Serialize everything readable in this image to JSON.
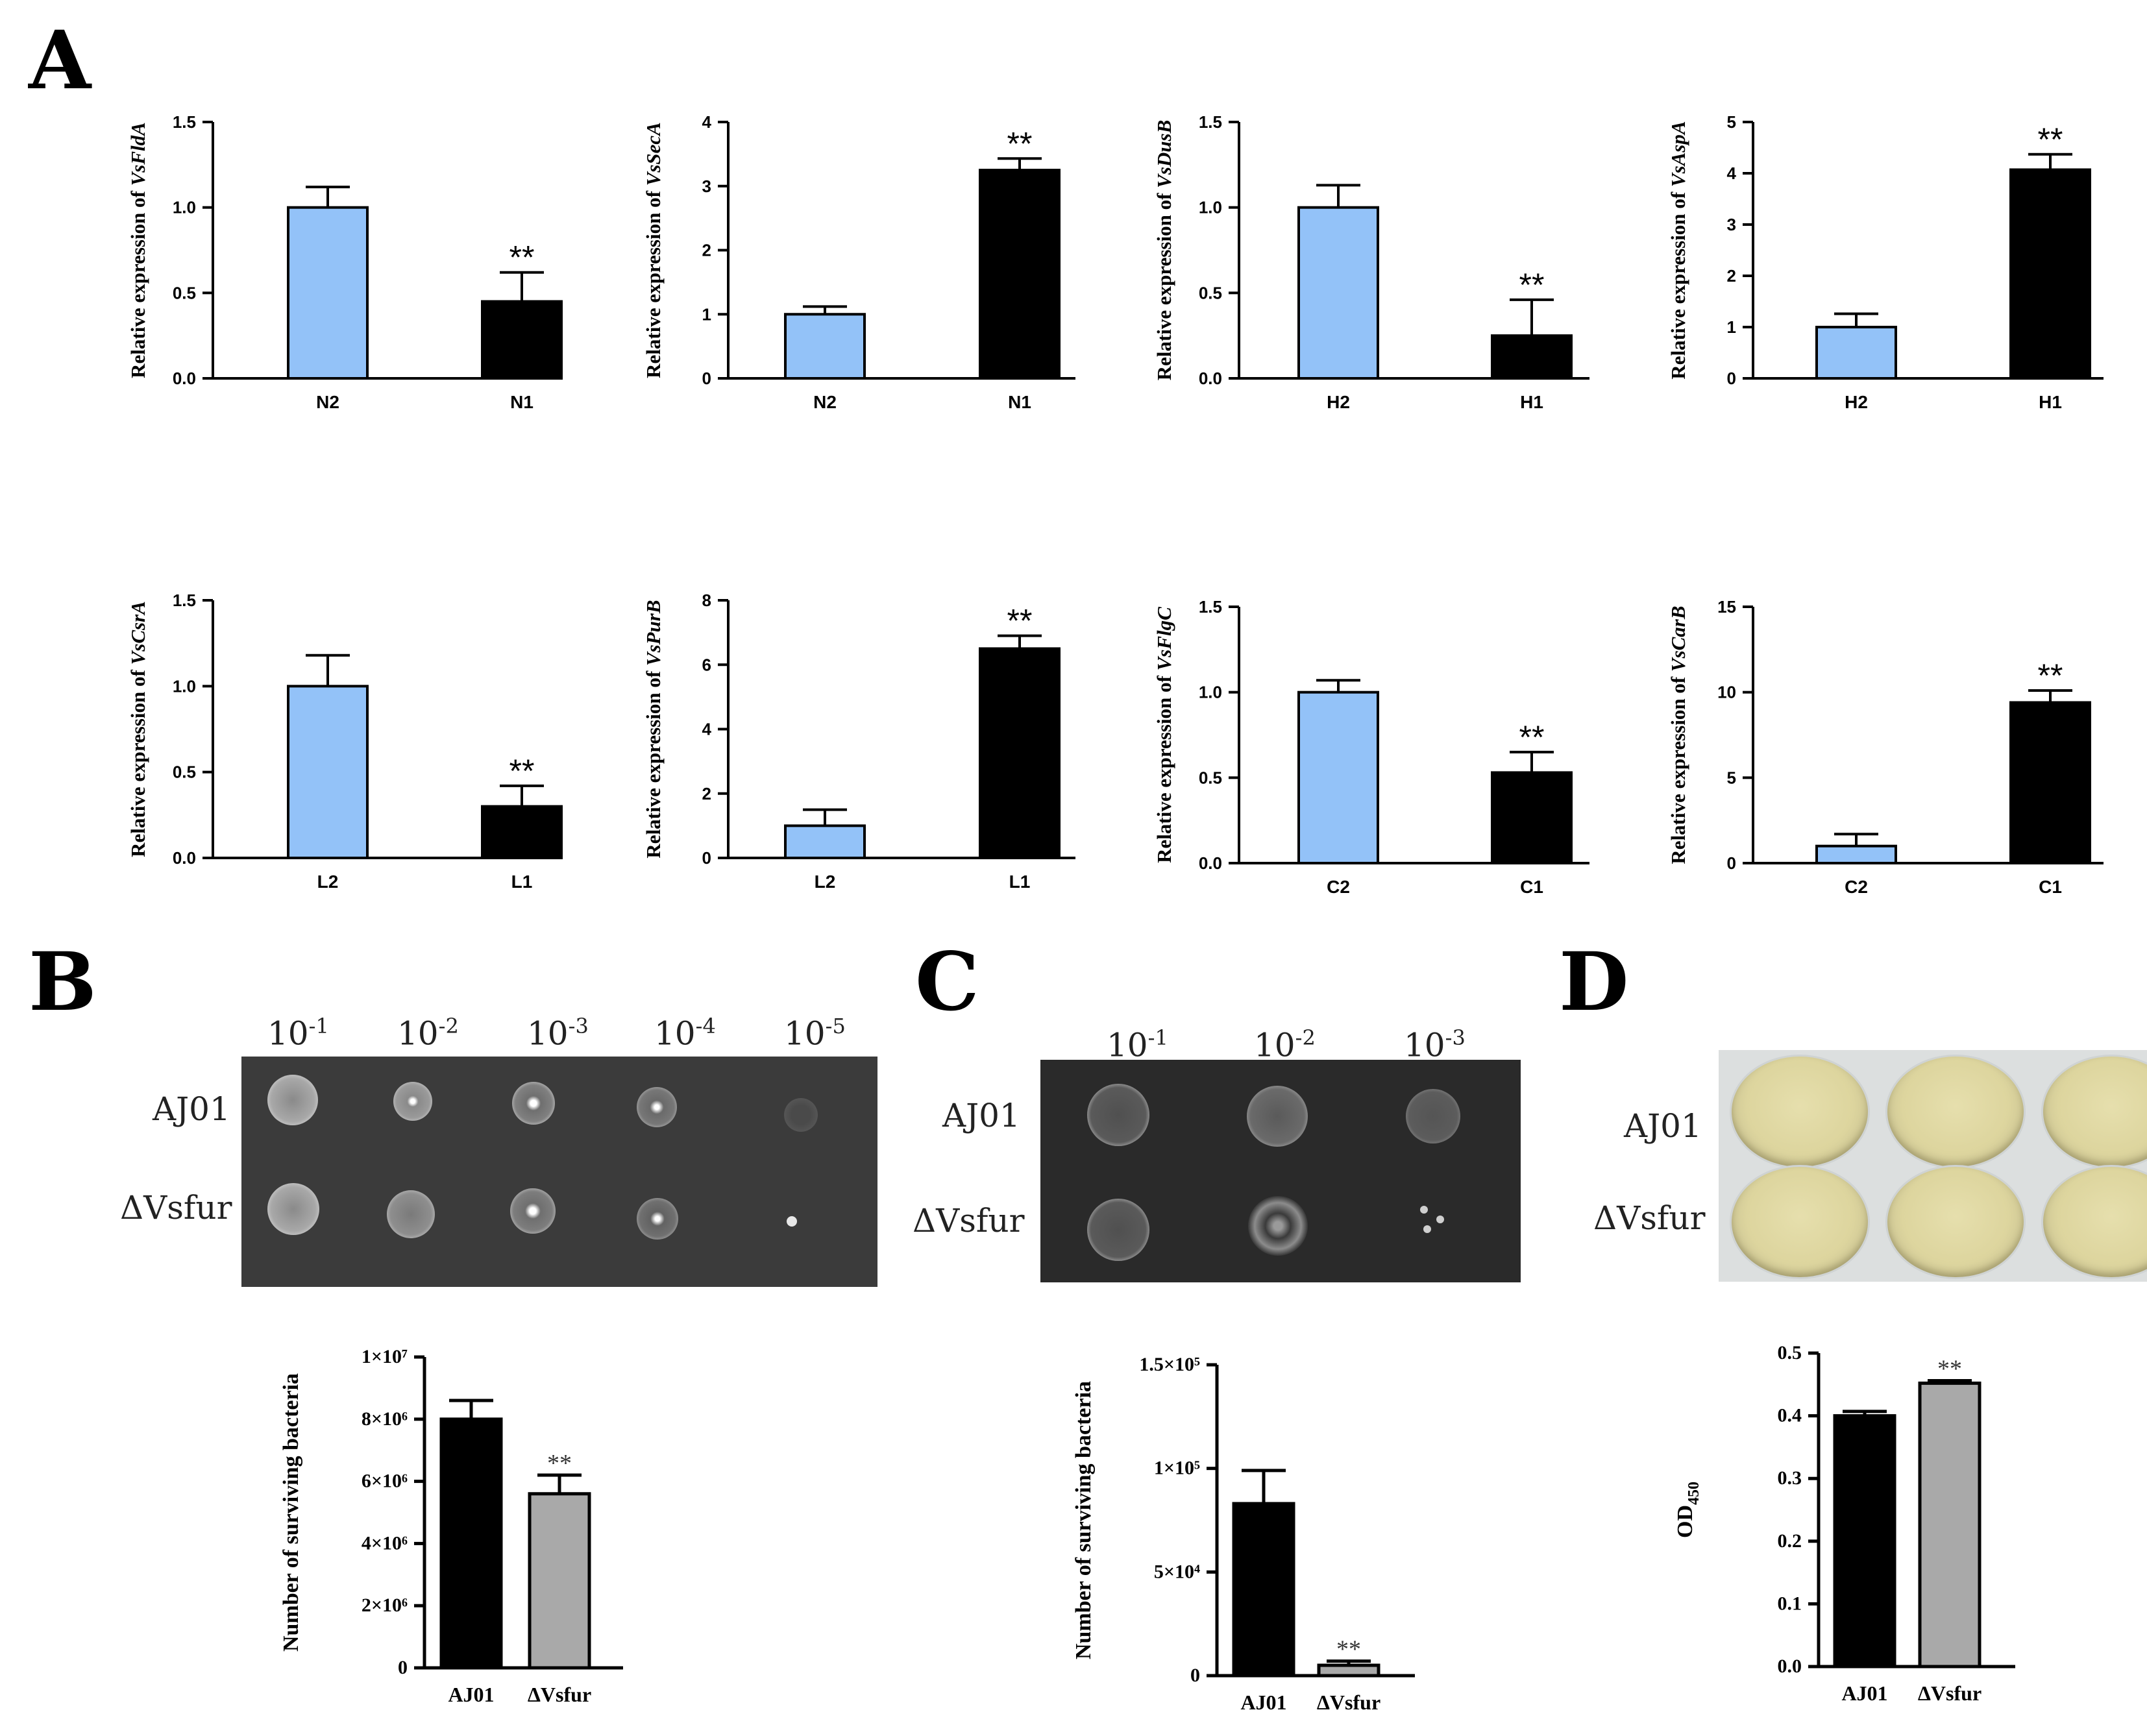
{
  "panels": {
    "a": "A",
    "b": "B",
    "c": "C",
    "d": "D"
  },
  "colors": {
    "control": "#93c2f8",
    "treated": "#000000",
    "gray": "#a9a9a9"
  },
  "chart_data": [
    {
      "id": "vsflda",
      "type": "bar",
      "ylabel_prefix": "Relative expression of ",
      "gene": "VsFldA",
      "categories": [
        "N2",
        "N1"
      ],
      "values": [
        1.0,
        0.45
      ],
      "errors": [
        0.12,
        0.17
      ],
      "sig": [
        "",
        "**"
      ],
      "ylim": [
        0,
        1.5
      ],
      "ticks": [
        0.0,
        0.5,
        1.0,
        1.5
      ],
      "tick_labels": [
        "0.0",
        "0.5",
        "1.0",
        "1.5"
      ],
      "colors": [
        "#93c2f8",
        "#000000"
      ]
    },
    {
      "id": "vsseca",
      "type": "bar",
      "ylabel_prefix": "Relative expression of ",
      "gene": "VsSecA",
      "categories": [
        "N2",
        "N1"
      ],
      "values": [
        1.0,
        3.25
      ],
      "errors": [
        0.12,
        0.18
      ],
      "sig": [
        "",
        "**"
      ],
      "ylim": [
        0,
        4
      ],
      "ticks": [
        0,
        1,
        2,
        3,
        4
      ],
      "tick_labels": [
        "0",
        "1",
        "2",
        "3",
        "4"
      ],
      "colors": [
        "#93c2f8",
        "#000000"
      ]
    },
    {
      "id": "vsdusb",
      "type": "bar",
      "ylabel_prefix": "Relative expression of ",
      "gene": "VsDusB",
      "categories": [
        "H2",
        "H1"
      ],
      "values": [
        1.0,
        0.25
      ],
      "errors": [
        0.13,
        0.21
      ],
      "sig": [
        "",
        "**"
      ],
      "ylim": [
        0,
        1.5
      ],
      "ticks": [
        0.0,
        0.5,
        1.0,
        1.5
      ],
      "tick_labels": [
        "0.0",
        "0.5",
        "1.0",
        "1.5"
      ],
      "colors": [
        "#93c2f8",
        "#000000"
      ]
    },
    {
      "id": "vsaspa",
      "type": "bar",
      "ylabel_prefix": "Relative expression of ",
      "gene": "VsAspA",
      "categories": [
        "H2",
        "H1"
      ],
      "values": [
        1.0,
        4.07
      ],
      "errors": [
        0.26,
        0.3
      ],
      "sig": [
        "",
        "**"
      ],
      "ylim": [
        0,
        5
      ],
      "ticks": [
        0,
        1,
        2,
        3,
        4,
        5
      ],
      "tick_labels": [
        "0",
        "1",
        "2",
        "3",
        "4",
        "5"
      ],
      "colors": [
        "#93c2f8",
        "#000000"
      ]
    },
    {
      "id": "vscsra",
      "type": "bar",
      "ylabel_prefix": "Relative expression of ",
      "gene": "VsCsrA",
      "categories": [
        "L2",
        "L1"
      ],
      "values": [
        1.0,
        0.3
      ],
      "errors": [
        0.18,
        0.12
      ],
      "sig": [
        "",
        "**"
      ],
      "ylim": [
        0,
        1.5
      ],
      "ticks": [
        0.0,
        0.5,
        1.0,
        1.5
      ],
      "tick_labels": [
        "0.0",
        "0.5",
        "1.0",
        "1.5"
      ],
      "colors": [
        "#93c2f8",
        "#000000"
      ]
    },
    {
      "id": "vspurb",
      "type": "bar",
      "ylabel_prefix": "Relative expression of ",
      "gene": "VsPurB",
      "categories": [
        "L2",
        "L1"
      ],
      "values": [
        1.0,
        6.5
      ],
      "errors": [
        0.5,
        0.4
      ],
      "sig": [
        "",
        "**"
      ],
      "ylim": [
        0,
        8
      ],
      "ticks": [
        0,
        2,
        4,
        6,
        8
      ],
      "tick_labels": [
        "0",
        "2",
        "4",
        "6",
        "8"
      ],
      "colors": [
        "#93c2f8",
        "#000000"
      ]
    },
    {
      "id": "vsflgc",
      "type": "bar",
      "ylabel_prefix": "Relative expression of ",
      "gene": "VsFlgC",
      "categories": [
        "C2",
        "C1"
      ],
      "values": [
        1.0,
        0.53
      ],
      "errors": [
        0.07,
        0.12
      ],
      "sig": [
        "",
        "**"
      ],
      "ylim": [
        0,
        1.5
      ],
      "ticks": [
        0.0,
        0.5,
        1.0,
        1.5
      ],
      "tick_labels": [
        "0.0",
        "0.5",
        "1.0",
        "1.5"
      ],
      "colors": [
        "#93c2f8",
        "#000000"
      ]
    },
    {
      "id": "vscarb",
      "type": "bar",
      "ylabel_prefix": "Relative expression of ",
      "gene": "VsCarB",
      "categories": [
        "C2",
        "C1"
      ],
      "values": [
        1.0,
        9.4
      ],
      "errors": [
        0.7,
        0.7
      ],
      "sig": [
        "",
        "**"
      ],
      "ylim": [
        0,
        15
      ],
      "ticks": [
        0,
        5,
        10,
        15
      ],
      "tick_labels": [
        "0",
        "5",
        "10",
        "15"
      ],
      "colors": [
        "#93c2f8",
        "#000000"
      ]
    },
    {
      "id": "b-survival",
      "type": "bar",
      "ylabel": "Number of surviving bacteria",
      "categories": [
        "AJ01",
        "ΔVsfur"
      ],
      "values": [
        8000000,
        5600000
      ],
      "errors": [
        600000,
        600000
      ],
      "sig": [
        "",
        "**"
      ],
      "ylim": [
        0,
        10000000
      ],
      "ticks": [
        0,
        2000000,
        4000000,
        6000000,
        8000000,
        10000000
      ],
      "tick_labels": [
        "0",
        "2×10⁶",
        "4×10⁶",
        "6×10⁶",
        "8×10⁶",
        "1×10⁷"
      ],
      "colors": [
        "#000000",
        "#a9a9a9"
      ]
    },
    {
      "id": "c-survival",
      "type": "bar",
      "ylabel": "Number of surviving bacteria",
      "categories": [
        "AJ01",
        "ΔVsfur"
      ],
      "values": [
        83000,
        5000
      ],
      "errors": [
        16000,
        2000
      ],
      "sig": [
        "",
        "**"
      ],
      "ylim": [
        0,
        150000
      ],
      "ticks": [
        0,
        50000,
        100000,
        150000
      ],
      "tick_labels": [
        "0",
        "5×10⁴",
        "1×10⁵",
        "1.5×10⁵"
      ],
      "colors": [
        "#000000",
        "#a9a9a9"
      ]
    },
    {
      "id": "d-od450",
      "type": "bar",
      "ylabel": "OD",
      "ylabel_sub": "450",
      "categories": [
        "AJ01",
        "ΔVsfur"
      ],
      "values": [
        0.4,
        0.452
      ],
      "errors": [
        0.007,
        0.004
      ],
      "sig": [
        "",
        "**"
      ],
      "ylim": [
        0,
        0.5
      ],
      "ticks": [
        0.0,
        0.1,
        0.2,
        0.3,
        0.4,
        0.5
      ],
      "tick_labels": [
        "0.0",
        "0.1",
        "0.2",
        "0.3",
        "0.4",
        "0.5"
      ],
      "colors": [
        "#000000",
        "#a9a9a9"
      ]
    }
  ],
  "plate_b": {
    "dilutions": [
      {
        "base": "10",
        "exp": "-1"
      },
      {
        "base": "10",
        "exp": "-2"
      },
      {
        "base": "10",
        "exp": "-3"
      },
      {
        "base": "10",
        "exp": "-4"
      },
      {
        "base": "10",
        "exp": "-5"
      }
    ],
    "strains": [
      "AJ01",
      "ΔVsfur"
    ]
  },
  "plate_c": {
    "dilutions": [
      {
        "base": "10",
        "exp": "-1"
      },
      {
        "base": "10",
        "exp": "-2"
      },
      {
        "base": "10",
        "exp": "-3"
      }
    ],
    "strains": [
      "AJ01",
      "ΔVsfur"
    ]
  },
  "plate_d": {
    "strains": [
      "AJ01",
      "ΔVsfur"
    ]
  }
}
